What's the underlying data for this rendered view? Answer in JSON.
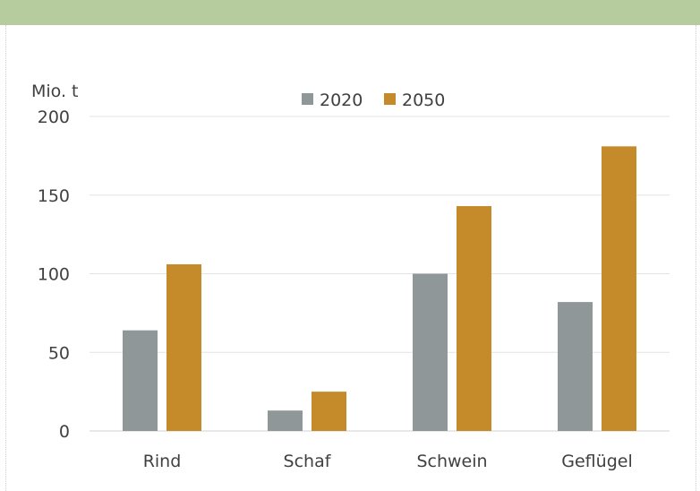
{
  "chart_data": {
    "type": "bar",
    "title": "",
    "xlabel": "",
    "ylabel": "Mio. t",
    "categories": [
      "Rind",
      "Schaf",
      "Schwein",
      "Geflügel"
    ],
    "series": [
      {
        "name": "2020",
        "color": "#8f9799",
        "values": [
          64,
          13,
          100,
          82
        ]
      },
      {
        "name": "2050",
        "color": "#c58a2a",
        "values": [
          106,
          25,
          143,
          181
        ]
      }
    ],
    "ylim": [
      0,
      200
    ],
    "yticks": [
      "0",
      "50",
      "100",
      "150",
      "200"
    ],
    "grid": true,
    "legend": "top-center",
    "header_color": "#b6cc9f"
  }
}
